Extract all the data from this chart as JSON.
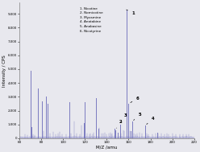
{
  "title": "",
  "xlabel": "M/Z /amu",
  "ylabel": "Intensity / CPS",
  "xlim": [
    60,
    220
  ],
  "ylim": [
    0,
    9800000
  ],
  "yticks": [
    0,
    1000000,
    2000000,
    3000000,
    4000000,
    5000000,
    6000000,
    7000000,
    8000000,
    9000000
  ],
  "ytick_labels": [
    "0",
    "1,000",
    "2,000",
    "3,000",
    "4,000",
    "5,000",
    "6,000",
    "7,000",
    "8,000",
    "9,000"
  ],
  "xticks": [
    60,
    80,
    100,
    120,
    140,
    160,
    180,
    200,
    220
  ],
  "legend": [
    "1. Nicotine",
    "2. Nornicotine",
    "3. Myosmine",
    "4. Anatabine",
    "5. Anabasine",
    "6. Nicotyrine"
  ],
  "background_color": "#e8e8ee",
  "line_color": "#7070bb",
  "peaks_main": [
    {
      "mz": 70.0,
      "intensity": 4900000
    },
    {
      "mz": 71.0,
      "intensity": 800000
    },
    {
      "mz": 77.0,
      "intensity": 3600000
    },
    {
      "mz": 80.5,
      "intensity": 2700000
    },
    {
      "mz": 84.0,
      "intensity": 3000000
    },
    {
      "mz": 86.0,
      "intensity": 2500000
    },
    {
      "mz": 106.0,
      "intensity": 2600000
    },
    {
      "mz": 119.0,
      "intensity": 1100000
    },
    {
      "mz": 120.0,
      "intensity": 2600000
    },
    {
      "mz": 130.0,
      "intensity": 2900000
    },
    {
      "mz": 132.0,
      "intensity": 700000
    },
    {
      "mz": 147.0,
      "intensity": 700000
    },
    {
      "mz": 148.0,
      "intensity": 600000
    },
    {
      "mz": 150.0,
      "intensity": 400000
    },
    {
      "mz": 152.0,
      "intensity": 1000000
    },
    {
      "mz": 158.0,
      "intensity": 9300000
    },
    {
      "mz": 160.0,
      "intensity": 2500000
    },
    {
      "mz": 162.0,
      "intensity": 500000
    },
    {
      "mz": 163.0,
      "intensity": 1200000
    },
    {
      "mz": 175.0,
      "intensity": 900000
    },
    {
      "mz": 186.0,
      "intensity": 400000
    }
  ],
  "peaks_small": [
    {
      "mz": 65.0,
      "intensity": 300000
    },
    {
      "mz": 67.0,
      "intensity": 250000
    },
    {
      "mz": 72.0,
      "intensity": 300000
    },
    {
      "mz": 74.0,
      "intensity": 250000
    },
    {
      "mz": 82.0,
      "intensity": 500000
    },
    {
      "mz": 88.0,
      "intensity": 350000
    },
    {
      "mz": 91.0,
      "intensity": 450000
    },
    {
      "mz": 93.0,
      "intensity": 300000
    },
    {
      "mz": 95.0,
      "intensity": 350000
    },
    {
      "mz": 97.0,
      "intensity": 450000
    },
    {
      "mz": 99.0,
      "intensity": 300000
    },
    {
      "mz": 103.0,
      "intensity": 300000
    },
    {
      "mz": 107.0,
      "intensity": 350000
    },
    {
      "mz": 110.0,
      "intensity": 1200000
    },
    {
      "mz": 112.0,
      "intensity": 350000
    },
    {
      "mz": 115.0,
      "intensity": 300000
    },
    {
      "mz": 117.0,
      "intensity": 900000
    },
    {
      "mz": 122.0,
      "intensity": 350000
    },
    {
      "mz": 124.0,
      "intensity": 300000
    },
    {
      "mz": 125.0,
      "intensity": 350000
    },
    {
      "mz": 127.0,
      "intensity": 300000
    },
    {
      "mz": 128.0,
      "intensity": 400000
    },
    {
      "mz": 133.0,
      "intensity": 750000
    },
    {
      "mz": 135.0,
      "intensity": 350000
    },
    {
      "mz": 137.0,
      "intensity": 350000
    },
    {
      "mz": 138.0,
      "intensity": 400000
    },
    {
      "mz": 140.0,
      "intensity": 300000
    },
    {
      "mz": 142.0,
      "intensity": 350000
    },
    {
      "mz": 143.0,
      "intensity": 400000
    },
    {
      "mz": 144.0,
      "intensity": 300000
    },
    {
      "mz": 145.0,
      "intensity": 350000
    },
    {
      "mz": 153.0,
      "intensity": 350000
    },
    {
      "mz": 155.0,
      "intensity": 600000
    },
    {
      "mz": 156.0,
      "intensity": 500000
    },
    {
      "mz": 161.0,
      "intensity": 500000
    },
    {
      "mz": 165.0,
      "intensity": 350000
    },
    {
      "mz": 166.0,
      "intensity": 300000
    },
    {
      "mz": 168.0,
      "intensity": 350000
    },
    {
      "mz": 170.0,
      "intensity": 400000
    },
    {
      "mz": 172.0,
      "intensity": 350000
    },
    {
      "mz": 177.0,
      "intensity": 350000
    },
    {
      "mz": 178.0,
      "intensity": 300000
    },
    {
      "mz": 182.0,
      "intensity": 300000
    },
    {
      "mz": 185.0,
      "intensity": 350000
    },
    {
      "mz": 187.0,
      "intensity": 350000
    },
    {
      "mz": 190.0,
      "intensity": 350000
    },
    {
      "mz": 193.0,
      "intensity": 300000
    },
    {
      "mz": 195.0,
      "intensity": 350000
    },
    {
      "mz": 197.0,
      "intensity": 300000
    },
    {
      "mz": 200.0,
      "intensity": 350000
    },
    {
      "mz": 203.0,
      "intensity": 300000
    },
    {
      "mz": 207.0,
      "intensity": 280000
    },
    {
      "mz": 210.0,
      "intensity": 280000
    },
    {
      "mz": 213.0,
      "intensity": 280000
    },
    {
      "mz": 215.0,
      "intensity": 280000
    }
  ],
  "annotations": [
    {
      "label": "1",
      "peak_mz": 158.0,
      "peak_int": 9300000,
      "text_mz": 163,
      "text_int": 8900000
    },
    {
      "label": "6",
      "peak_mz": 160.0,
      "peak_int": 2500000,
      "text_mz": 167,
      "text_int": 2750000
    },
    {
      "label": "3",
      "peak_mz": 152.0,
      "peak_int": 1000000,
      "text_mz": 156,
      "text_int": 1500000
    },
    {
      "label": "2",
      "peak_mz": 148.0,
      "peak_int": 600000,
      "text_mz": 151,
      "text_int": 1050000
    },
    {
      "label": "5",
      "peak_mz": 163.0,
      "peak_int": 1200000,
      "text_mz": 169,
      "text_int": 1550000
    },
    {
      "label": "4",
      "peak_mz": 175.0,
      "peak_int": 900000,
      "text_mz": 181,
      "text_int": 1300000
    }
  ]
}
